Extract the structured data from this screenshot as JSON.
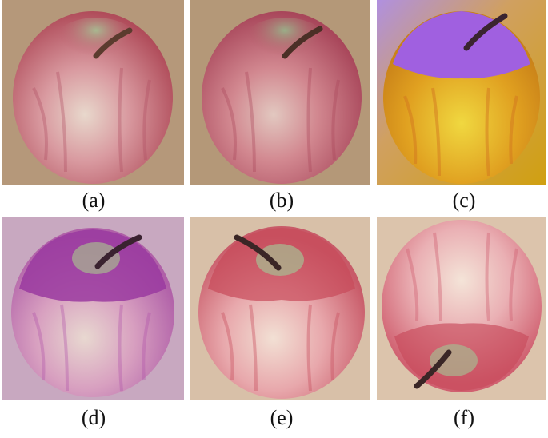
{
  "panels": [
    {
      "id": "a",
      "caption": "(a)",
      "description_colors": {
        "bg": "#b5987a",
        "apple": "#c8606a",
        "top": "#c06070",
        "stem": "#5b3b2e"
      }
    },
    {
      "id": "b",
      "caption": "(b)",
      "description_colors": {
        "bg": "#b49878",
        "apple": "#c25c68",
        "top": "#b55a66",
        "stem": "#4b2f26"
      }
    },
    {
      "id": "c",
      "caption": "(c)",
      "description_colors": {
        "bg": "#e0b020",
        "apple": "#e0a020",
        "top": "#a060e0",
        "stem": "#3a2430"
      }
    },
    {
      "id": "d",
      "caption": "(d)",
      "description_colors": {
        "bg": "#c8a8c0",
        "apple": "#c070b0",
        "top": "#9a3aa0",
        "stem": "#3a2230"
      }
    },
    {
      "id": "e",
      "caption": "(e)",
      "description_colors": {
        "bg": "#d8c0a8",
        "apple": "#d87080",
        "top": "#c84a5a",
        "stem": "#3a2626"
      }
    },
    {
      "id": "f",
      "caption": "(f)",
      "description_colors": {
        "bg": "#dcc4ac",
        "apple": "#e08a92",
        "top": "#d06070",
        "stem": "#3a2626"
      }
    }
  ]
}
